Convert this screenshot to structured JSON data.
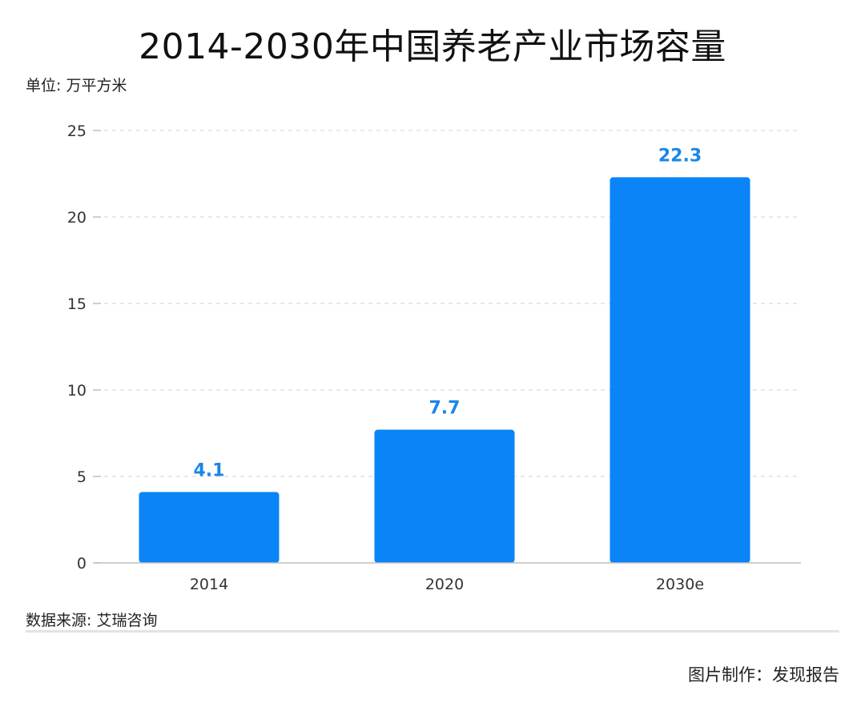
{
  "title": "2014-2030年中国养老产业市场容量",
  "unit_label": "单位: 万平方米",
  "source_label": "数据来源: 艾瑞咨询",
  "credit_label": "图片制作：发现报告",
  "colors": {
    "bar": "#0a84f7",
    "data_label": "#1a86e8",
    "grid": "#d9d9d9",
    "axis": "#bdbdbd",
    "tick_text": "#333333"
  },
  "chart_data": {
    "type": "bar",
    "categories": [
      "2014",
      "2020",
      "2030e"
    ],
    "values": [
      4.1,
      7.7,
      22.3
    ],
    "data_labels": [
      "4.1",
      "7.7",
      "22.3"
    ],
    "ylim": [
      0,
      25
    ],
    "yticks": [
      0,
      5,
      10,
      15,
      20,
      25
    ],
    "ytick_labels": [
      "0",
      "5",
      "10",
      "15",
      "20",
      "25"
    ],
    "grid": true,
    "legend": "none"
  }
}
